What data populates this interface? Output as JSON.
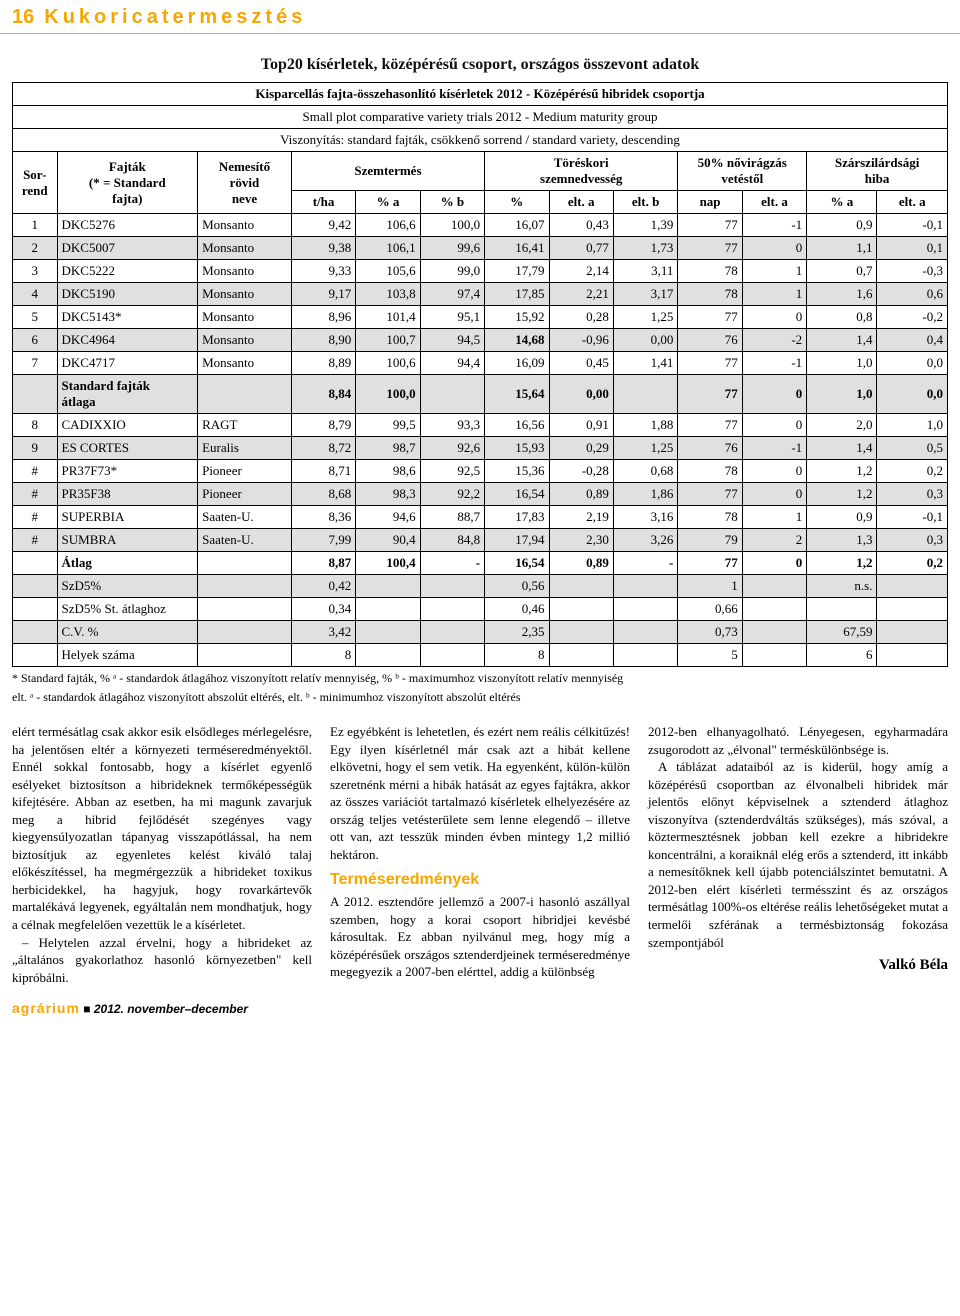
{
  "header": {
    "page_num": "16",
    "section": "Kukoricatermesztés"
  },
  "table": {
    "title": "Top20 kísérletek, középérésű csoport, országos összevont adatok",
    "caption_rows": [
      "Kisparcellás fajta-összehasonlító kísérletek 2012 - Középérésű hibridek csoportja",
      "Small plot comparative variety trials 2012 - Medium maturity group",
      "Viszonyítás: standard fajták, csökkenő sorrend / standard variety, descending"
    ],
    "head": {
      "sorrend": "Sor-\nrend",
      "fajtak": "Fajták\n(* = Standard\nfajta)",
      "nemesito": "Nemesítő\nrövid\nneve",
      "szemtermes": "Szemtermés",
      "toreskori": "Töréskori\nszemnedvesség",
      "novir": "50% nővirágzás\nvetéstől",
      "szarszil": "Szárszilárdsági\nhiba",
      "sub": {
        "tha": "t/ha",
        "pa": "% a",
        "pb": "% b",
        "pct": "%",
        "elta": "elt. a",
        "eltb": "elt. b",
        "nap": "nap",
        "elta2": "elt. a",
        "pa2": "% a",
        "elta3": "elt. a"
      }
    },
    "rows": [
      {
        "n": "1",
        "f": "DKC5276",
        "m": "Monsanto",
        "v": [
          "9,42",
          "106,6",
          "100,0",
          "16,07",
          "0,43",
          "1,39",
          "77",
          "-1",
          "0,9",
          "-0,1"
        ],
        "shade": false
      },
      {
        "n": "2",
        "f": "DKC5007",
        "m": "Monsanto",
        "v": [
          "9,38",
          "106,1",
          "99,6",
          "16,41",
          "0,77",
          "1,73",
          "77",
          "0",
          "1,1",
          "0,1"
        ],
        "shade": true
      },
      {
        "n": "3",
        "f": "DKC5222",
        "m": "Monsanto",
        "v": [
          "9,33",
          "105,6",
          "99,0",
          "17,79",
          "2,14",
          "3,11",
          "78",
          "1",
          "0,7",
          "-0,3"
        ],
        "shade": false
      },
      {
        "n": "4",
        "f": "DKC5190",
        "m": "Monsanto",
        "v": [
          "9,17",
          "103,8",
          "97,4",
          "17,85",
          "2,21",
          "3,17",
          "78",
          "1",
          "1,6",
          "0,6"
        ],
        "shade": true
      },
      {
        "n": "5",
        "f": "DKC5143*",
        "m": "Monsanto",
        "v": [
          "8,96",
          "101,4",
          "95,1",
          "15,92",
          "0,28",
          "1,25",
          "77",
          "0",
          "0,8",
          "-0,2"
        ],
        "shade": false
      },
      {
        "n": "6",
        "f": "DKC4964",
        "m": "Monsanto",
        "v": [
          "8,90",
          "100,7",
          "94,5",
          "14,68",
          "-0,96",
          "0,00",
          "76",
          "-2",
          "1,4",
          "0,4"
        ],
        "shade": true,
        "boldcols": [
          3
        ]
      },
      {
        "n": "7",
        "f": "DKC4717",
        "m": "Monsanto",
        "v": [
          "8,89",
          "100,6",
          "94,4",
          "16,09",
          "0,45",
          "1,41",
          "77",
          "-1",
          "1,0",
          "0,0"
        ],
        "shade": false
      },
      {
        "n": "",
        "f": "Standard fajták\nátlaga",
        "m": "",
        "v": [
          "8,84",
          "100,0",
          "",
          "15,64",
          "0,00",
          "",
          "77",
          "0",
          "1,0",
          "0,0"
        ],
        "shade": true,
        "bold": true
      },
      {
        "n": "8",
        "f": "CADIXXIO",
        "m": "RAGT",
        "v": [
          "8,79",
          "99,5",
          "93,3",
          "16,56",
          "0,91",
          "1,88",
          "77",
          "0",
          "2,0",
          "1,0"
        ],
        "shade": false
      },
      {
        "n": "9",
        "f": "ES CORTES",
        "m": "Euralis",
        "v": [
          "8,72",
          "98,7",
          "92,6",
          "15,93",
          "0,29",
          "1,25",
          "76",
          "-1",
          "1,4",
          "0,5"
        ],
        "shade": true
      },
      {
        "n": "#",
        "f": "PR37F73*",
        "m": "Pioneer",
        "v": [
          "8,71",
          "98,6",
          "92,5",
          "15,36",
          "-0,28",
          "0,68",
          "78",
          "0",
          "1,2",
          "0,2"
        ],
        "shade": false
      },
      {
        "n": "#",
        "f": "PR35F38",
        "m": "Pioneer",
        "v": [
          "8,68",
          "98,3",
          "92,2",
          "16,54",
          "0,89",
          "1,86",
          "77",
          "0",
          "1,2",
          "0,3"
        ],
        "shade": true
      },
      {
        "n": "#",
        "f": "SUPERBIA",
        "m": "Saaten-U.",
        "v": [
          "8,36",
          "94,6",
          "88,7",
          "17,83",
          "2,19",
          "3,16",
          "78",
          "1",
          "0,9",
          "-0,1"
        ],
        "shade": false
      },
      {
        "n": "#",
        "f": "SUMBRA",
        "m": "Saaten-U.",
        "v": [
          "7,99",
          "90,4",
          "84,8",
          "17,94",
          "2,30",
          "3,26",
          "79",
          "2",
          "1,3",
          "0,3"
        ],
        "shade": true
      },
      {
        "n": "",
        "f": "Átlag",
        "m": "",
        "v": [
          "8,87",
          "100,4",
          "-",
          "16,54",
          "0,89",
          "-",
          "77",
          "0",
          "1,2",
          "0,2"
        ],
        "shade": false,
        "bold": true
      },
      {
        "n": "",
        "f": "SzD5%",
        "m": "",
        "v": [
          "0,42",
          "",
          "",
          "0,56",
          "",
          "",
          "1",
          "",
          "n.s.",
          ""
        ],
        "shade": true
      },
      {
        "n": "",
        "f": "SzD5% St. átlaghoz",
        "m": "",
        "v": [
          "0,34",
          "",
          "",
          "0,46",
          "",
          "",
          "0,66",
          "",
          "",
          ""
        ],
        "shade": false
      },
      {
        "n": "",
        "f": "C.V. %",
        "m": "",
        "v": [
          "3,42",
          "",
          "",
          "2,35",
          "",
          "",
          "0,73",
          "",
          "67,59",
          ""
        ],
        "shade": true
      },
      {
        "n": "",
        "f": "Helyek száma",
        "m": "",
        "v": [
          "8",
          "",
          "",
          "8",
          "",
          "",
          "5",
          "",
          "6",
          ""
        ],
        "shade": false
      }
    ],
    "footnote1": "* Standard fajták, % ᵃ - standardok átlagához viszonyított relatív mennyiség, % ᵇ - maximumhoz viszonyított relatív mennyiség",
    "footnote2": "elt. ᵃ - standardok átlagához viszonyított abszolút eltérés, elt. ᵇ - minimumhoz viszonyított abszolút eltérés"
  },
  "article": {
    "p1": "elért termésátlag csak akkor esik elsődleges mérlegelésre, ha jelentősen eltér a környezeti terméseredményektől. Ennél sokkal fontosabb, hogy a kísérlet egyenlő esélyeket biztosítson a hibrideknek termőképességük kifejtésére. Abban az esetben, ha mi magunk zavarjuk meg a hibrid fejlődését szegényes vagy kiegyensúlyozatlan tápanyag visszapótlással, ha nem biztosítjuk az egyenletes kelést kiváló talaj előkészítéssel, ha megmérgezzük a hibrideket toxikus herbicidekkel, ha hagyjuk, hogy rovarkártevők martalékává legyenek, egyáltalán nem mondhatjuk, hogy a célnak megfelelően vezettük le a kísérletet.",
    "p2": "– Helytelen azzal érvelni, hogy a hibrideket az „általános gyakorlathoz hasonló környezetben\" kell kipróbálni.",
    "p3": "Ez egyébként is lehetetlen, és ezért nem reális célkitűzés! Egy ilyen kísérletnél már csak azt a hibát kellene elkövetni, hogy el sem vetik. Ha egyenként, külön-külön szeretnénk mérni a hibák hatását az egyes fajtákra, akkor az összes variációt tartalmazó kísérletek elhelyezésére az ország teljes vetésterülete sem lenne elegendő – illetve ott van, azt tesszük minden évben mintegy 1,2 millió hektáron.",
    "subhead": "Terméseredmények",
    "p4": "A 2012. esztendőre jellemző a 2007-i hasonló aszállyal szemben, hogy a korai csoport hibridjei kevésbé károsultak. Ez abban nyilvánul meg, hogy míg a középérésűek országos sztenderdjeinek terméseredménye megegyezik a 2007-ben elérttel, addig a különbség",
    "p5": "2012-ben elhanyagolható. Lényegesen, egyharmadára zsugorodott az „élvonal\" terméskülönbsége is.",
    "p6": "A táblázat adataiból az is kiderül, hogy amíg a középérésű csoportban az élvonalbeli hibridek már jelentős előnyt képviselnek a sztenderd átlaghoz viszonyítva (sztenderdváltás szükséges), más szóval, a köztermesztésnek jobban kell ezekre a hibridekre koncentrálni, a koraiknál elég erős a sztenderd, itt inkább a nemesítőknek kell újabb potenciálszintet bemutatni. A 2012-ben elért kísérleti termésszint és az országos termésátlag 100%-os eltérése reális lehetőségeket mutat a termelői szférának a termésbiztonság fokozása szempontjából",
    "author": "Valkó Béla"
  },
  "footer": {
    "brand": "agrárium",
    "sep": "■",
    "issue": "2012. november–december"
  },
  "colors": {
    "accent": "#f7a600",
    "shade": "#e0e0e0"
  }
}
